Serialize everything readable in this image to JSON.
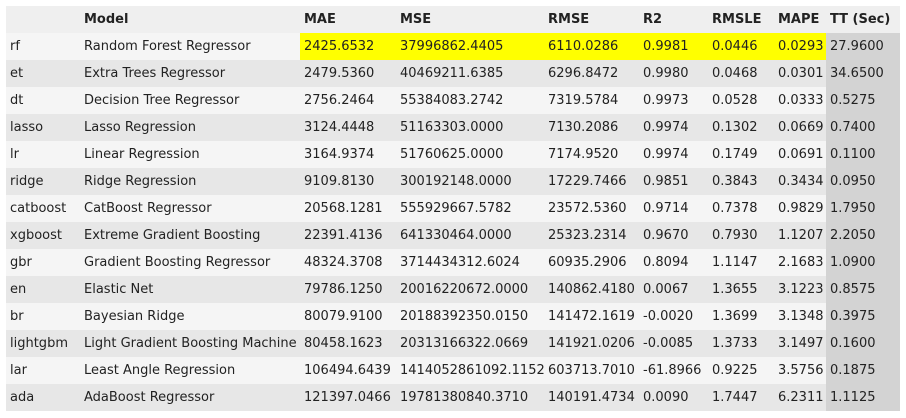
{
  "table": {
    "columns": [
      "",
      "Model",
      "MAE",
      "MSE",
      "RMSE",
      "R2",
      "RMSLE",
      "MAPE",
      "TT (Sec)"
    ],
    "rows": [
      {
        "id": "rf",
        "model": "Random Forest Regressor",
        "mae": "2425.6532",
        "mse": "37996862.4405",
        "rmse": "6110.0286",
        "r2": "0.9981",
        "rmsle": "0.0446",
        "mape": "0.0293",
        "tt": "27.9600"
      },
      {
        "id": "et",
        "model": "Extra Trees Regressor",
        "mae": "2479.5360",
        "mse": "40469211.6385",
        "rmse": "6296.8472",
        "r2": "0.9980",
        "rmsle": "0.0468",
        "mape": "0.0301",
        "tt": "34.6500"
      },
      {
        "id": "dt",
        "model": "Decision Tree Regressor",
        "mae": "2756.2464",
        "mse": "55384083.2742",
        "rmse": "7319.5784",
        "r2": "0.9973",
        "rmsle": "0.0528",
        "mape": "0.0333",
        "tt": "0.5275"
      },
      {
        "id": "lasso",
        "model": "Lasso Regression",
        "mae": "3124.4448",
        "mse": "51163303.0000",
        "rmse": "7130.2086",
        "r2": "0.9974",
        "rmsle": "0.1302",
        "mape": "0.0669",
        "tt": "0.7400"
      },
      {
        "id": "lr",
        "model": "Linear Regression",
        "mae": "3164.9374",
        "mse": "51760625.0000",
        "rmse": "7174.9520",
        "r2": "0.9974",
        "rmsle": "0.1749",
        "mape": "0.0691",
        "tt": "0.1100"
      },
      {
        "id": "ridge",
        "model": "Ridge Regression",
        "mae": "9109.8130",
        "mse": "300192148.0000",
        "rmse": "17229.7466",
        "r2": "0.9851",
        "rmsle": "0.3843",
        "mape": "0.3434",
        "tt": "0.0950"
      },
      {
        "id": "catboost",
        "model": "CatBoost Regressor",
        "mae": "20568.1281",
        "mse": "555929667.5782",
        "rmse": "23572.5360",
        "r2": "0.9714",
        "rmsle": "0.7378",
        "mape": "0.9829",
        "tt": "1.7950"
      },
      {
        "id": "xgboost",
        "model": "Extreme Gradient Boosting",
        "mae": "22391.4136",
        "mse": "641330464.0000",
        "rmse": "25323.2314",
        "r2": "0.9670",
        "rmsle": "0.7930",
        "mape": "1.1207",
        "tt": "2.2050"
      },
      {
        "id": "gbr",
        "model": "Gradient Boosting Regressor",
        "mae": "48324.3708",
        "mse": "3714434312.6024",
        "rmse": "60935.2906",
        "r2": "0.8094",
        "rmsle": "1.1147",
        "mape": "2.1683",
        "tt": "1.0900"
      },
      {
        "id": "en",
        "model": "Elastic Net",
        "mae": "79786.1250",
        "mse": "20016220672.0000",
        "rmse": "140862.4180",
        "r2": "0.0067",
        "rmsle": "1.3655",
        "mape": "3.1223",
        "tt": "0.8575"
      },
      {
        "id": "br",
        "model": "Bayesian Ridge",
        "mae": "80079.9100",
        "mse": "20188392350.0150",
        "rmse": "141472.1619",
        "r2": "-0.0020",
        "rmsle": "1.3699",
        "mape": "3.1348",
        "tt": "0.3975"
      },
      {
        "id": "lightgbm",
        "model": "Light Gradient Boosting Machine",
        "mae": "80458.1623",
        "mse": "20313166322.0669",
        "rmse": "141921.0206",
        "r2": "-0.0085",
        "rmsle": "1.3733",
        "mape": "3.1497",
        "tt": "0.1600"
      },
      {
        "id": "lar",
        "model": "Least Angle Regression",
        "mae": "106494.6439",
        "mse": "1414052861092.1152",
        "rmse": "603713.7010",
        "r2": "-61.8966",
        "rmsle": "0.9225",
        "mape": "3.5756",
        "tt": "0.1875"
      },
      {
        "id": "ada",
        "model": "AdaBoost Regressor",
        "mae": "121397.0466",
        "mse": "19781380840.3710",
        "rmse": "140191.4734",
        "r2": "0.0090",
        "rmsle": "1.7447",
        "mape": "6.2311",
        "tt": "1.1125"
      }
    ]
  },
  "colors": {
    "highlight_best": "#ffff00",
    "highlight_tt": "#d3d3d3",
    "row_light": "#f5f5f5",
    "row_dark": "#e7e7e7",
    "header_bg": "#efefef"
  }
}
